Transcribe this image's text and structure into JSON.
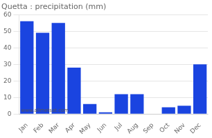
{
  "chart_data": {
    "type": "bar",
    "title": "Quetta : precipitation (mm)",
    "categories": [
      "Jan",
      "Feb",
      "Mar",
      "Apr",
      "May",
      "Jun",
      "Jul",
      "Aug",
      "Sep",
      "Oct",
      "Nov",
      "Dec"
    ],
    "values": [
      56,
      49,
      55,
      28,
      6,
      1,
      12,
      12,
      0,
      4,
      5,
      30
    ],
    "color": "#1a44e0",
    "ylim": [
      0,
      60
    ],
    "yticks": [
      0,
      10,
      20,
      30,
      40,
      50,
      60
    ],
    "grid": true,
    "annotations": [
      "www.allmetsat.com"
    ]
  }
}
